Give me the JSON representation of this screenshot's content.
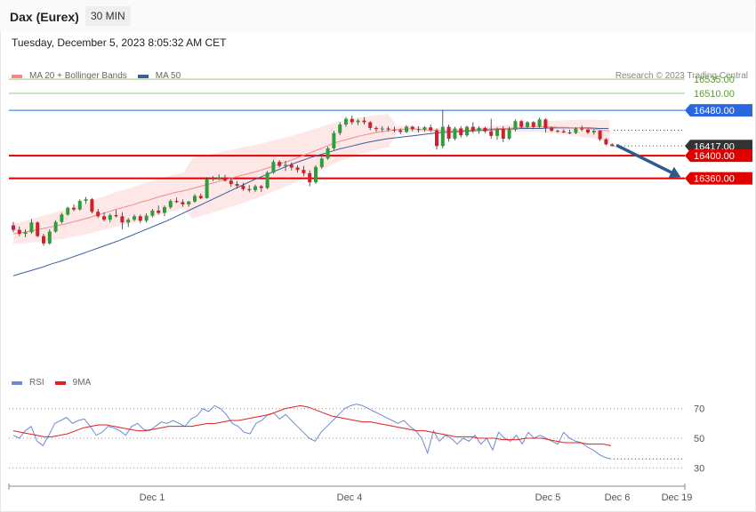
{
  "header": {
    "title": "Dax (Eurex)",
    "timeframe": "30 MIN"
  },
  "datetime": "Tuesday, December 5, 2023 8:05:32 AM CET",
  "legend": {
    "ma20": {
      "label": "MA 20 + Bollinger Bands",
      "color": "#f08a8a"
    },
    "ma50": {
      "label": "MA 50",
      "color": "#3a5f9e"
    }
  },
  "copyright": "Research © 2023 Trading Central",
  "rsi_legend": {
    "rsi": {
      "label": "RSI",
      "color": "#7089d6"
    },
    "ma9": {
      "label": "9MA",
      "color": "#e02020"
    }
  },
  "chart_data": [
    {
      "type": "candlestick",
      "ylim": [
        16000,
        16565
      ],
      "x_tick_labels": [
        "Dec 1",
        "Dec 4",
        "Dec 5",
        "Dec 6",
        "Dec 19"
      ],
      "grid": false,
      "legend_position": "top-left",
      "levels": [
        {
          "value": 16535,
          "label": "16535.00",
          "role": "target",
          "color": "#9acd6e",
          "label_style": "text"
        },
        {
          "value": 16510,
          "label": "16510.00",
          "role": "target",
          "color": "#9acd6e",
          "label_style": "text"
        },
        {
          "value": 16480,
          "label": "16480.00",
          "role": "pivot",
          "color": "#2a66e0",
          "label_style": "box"
        },
        {
          "value": 16417,
          "label": "16417.00",
          "role": "last price",
          "color": "#333333",
          "label_style": "box"
        },
        {
          "value": 16400,
          "label": "16400.00",
          "role": "support",
          "color": "#e00000",
          "label_style": "box"
        },
        {
          "value": 16360,
          "label": "16360.00",
          "role": "support",
          "color": "#e00000",
          "label_style": "box"
        }
      ],
      "forecast_arrow": {
        "from": 16417,
        "to": 16360,
        "color": "#2e5a8e"
      },
      "candles": [
        [
          16277,
          16283,
          16265,
          16269
        ],
        [
          16269,
          16275,
          16258,
          16262
        ],
        [
          16262,
          16270,
          16256,
          16265
        ],
        [
          16265,
          16288,
          16262,
          16282
        ],
        [
          16282,
          16284,
          16256,
          16258
        ],
        [
          16258,
          16262,
          16241,
          16245
        ],
        [
          16245,
          16270,
          16243,
          16266
        ],
        [
          16266,
          16286,
          16264,
          16283
        ],
        [
          16283,
          16299,
          16280,
          16296
        ],
        [
          16296,
          16310,
          16294,
          16308
        ],
        [
          16308,
          16314,
          16302,
          16305
        ],
        [
          16305,
          16323,
          16303,
          16320
        ],
        [
          16320,
          16327,
          16315,
          16323
        ],
        [
          16323,
          16325,
          16298,
          16301
        ],
        [
          16301,
          16306,
          16290,
          16293
        ],
        [
          16293,
          16300,
          16284,
          16287
        ],
        [
          16287,
          16298,
          16282,
          16295
        ],
        [
          16295,
          16304,
          16291,
          16293
        ],
        [
          16293,
          16300,
          16270,
          16282
        ],
        [
          16282,
          16290,
          16274,
          16287
        ],
        [
          16287,
          16296,
          16284,
          16293
        ],
        [
          16293,
          16296,
          16281,
          16285
        ],
        [
          16285,
          16298,
          16282,
          16294
        ],
        [
          16294,
          16306,
          16291,
          16303
        ],
        [
          16303,
          16312,
          16296,
          16299
        ],
        [
          16299,
          16312,
          16293,
          16309
        ],
        [
          16309,
          16323,
          16306,
          16320
        ],
        [
          16320,
          16326,
          16316,
          16318
        ],
        [
          16318,
          16323,
          16310,
          16314
        ],
        [
          16314,
          16320,
          16310,
          16319
        ],
        [
          16319,
          16332,
          16317,
          16329
        ],
        [
          16329,
          16333,
          16323,
          16325
        ],
        [
          16325,
          16362,
          16324,
          16358
        ],
        [
          16358,
          16364,
          16355,
          16360
        ],
        [
          16360,
          16367,
          16357,
          16361
        ],
        [
          16361,
          16366,
          16354,
          16356
        ],
        [
          16356,
          16361,
          16345,
          16350
        ],
        [
          16350,
          16355,
          16342,
          16347
        ],
        [
          16347,
          16352,
          16338,
          16341
        ],
        [
          16341,
          16348,
          16335,
          16339
        ],
        [
          16339,
          16349,
          16336,
          16346
        ],
        [
          16346,
          16348,
          16336,
          16343
        ],
        [
          16343,
          16373,
          16341,
          16370
        ],
        [
          16370,
          16393,
          16368,
          16389
        ],
        [
          16389,
          16392,
          16379,
          16382
        ],
        [
          16382,
          16391,
          16373,
          16384
        ],
        [
          16384,
          16388,
          16374,
          16379
        ],
        [
          16379,
          16383,
          16370,
          16375
        ],
        [
          16375,
          16382,
          16364,
          16369
        ],
        [
          16369,
          16374,
          16346,
          16353
        ],
        [
          16353,
          16383,
          16350,
          16380
        ],
        [
          16380,
          16398,
          16377,
          16395
        ],
        [
          16395,
          16416,
          16393,
          16413
        ],
        [
          16413,
          16444,
          16410,
          16440
        ],
        [
          16440,
          16459,
          16436,
          16455
        ],
        [
          16455,
          16468,
          16451,
          16465
        ],
        [
          16465,
          16471,
          16455,
          16459
        ],
        [
          16459,
          16465,
          16454,
          16462
        ],
        [
          16462,
          16468,
          16455,
          16459
        ],
        [
          16459,
          16461,
          16445,
          16449
        ],
        [
          16449,
          16452,
          16442,
          16447
        ],
        [
          16447,
          16452,
          16442,
          16448
        ],
        [
          16448,
          16452,
          16443,
          16446
        ],
        [
          16446,
          16451,
          16441,
          16445
        ],
        [
          16445,
          16448,
          16438,
          16442
        ],
        [
          16442,
          16454,
          16440,
          16451
        ],
        [
          16451,
          16453,
          16443,
          16447
        ],
        [
          16447,
          16452,
          16441,
          16446
        ],
        [
          16446,
          16452,
          16443,
          16450
        ],
        [
          16450,
          16455,
          16442,
          16445
        ],
        [
          16445,
          16448,
          16411,
          16417
        ],
        [
          16417,
          16480,
          16413,
          16451
        ],
        [
          16451,
          16455,
          16425,
          16430
        ],
        [
          16430,
          16451,
          16427,
          16448
        ],
        [
          16448,
          16452,
          16432,
          16436
        ],
        [
          16436,
          16453,
          16433,
          16451
        ],
        [
          16451,
          16459,
          16440,
          16444
        ],
        [
          16444,
          16452,
          16439,
          16449
        ],
        [
          16449,
          16451,
          16440,
          16443
        ],
        [
          16443,
          16465,
          16430,
          16435
        ],
        [
          16435,
          16450,
          16428,
          16447
        ],
        [
          16447,
          16452,
          16424,
          16430
        ],
        [
          16430,
          16451,
          16428,
          16446
        ],
        [
          16446,
          16464,
          16443,
          16461
        ],
        [
          16461,
          16463,
          16448,
          16451
        ],
        [
          16451,
          16461,
          16448,
          16459
        ],
        [
          16459,
          16461,
          16447,
          16451
        ],
        [
          16451,
          16467,
          16449,
          16464
        ],
        [
          16464,
          16466,
          16441,
          16449
        ],
        [
          16449,
          16451,
          16442,
          16444
        ],
        [
          16444,
          16446,
          16440,
          16443
        ],
        [
          16443,
          16447,
          16440,
          16441
        ],
        [
          16441,
          16446,
          16438,
          16440
        ],
        [
          16440,
          16450,
          16438,
          16448
        ],
        [
          16448,
          16453,
          16443,
          16446
        ],
        [
          16446,
          16448,
          16438,
          16441
        ],
        [
          16441,
          16446,
          16437,
          16444
        ],
        [
          16444,
          16445,
          16426,
          16429
        ],
        [
          16429,
          16431,
          16418,
          16420
        ],
        [
          16420,
          16422,
          16416,
          16417
        ]
      ],
      "ma20": [
        16262,
        16264,
        16267,
        16270,
        16273,
        16276,
        16279,
        16283,
        16287,
        16291,
        16296,
        16300,
        16305,
        16309,
        16313,
        16318,
        16322,
        16327,
        16331,
        16335,
        16338,
        16342,
        16346,
        16350,
        16354,
        16358,
        16362,
        16366,
        16370,
        16374,
        16379,
        16384,
        16389,
        16394,
        16400,
        16406,
        16412,
        16418,
        16424,
        16428,
        16432,
        16436,
        16439,
        16442,
        16444,
        16446,
        16447,
        16447,
        16446,
        16445,
        16444,
        16444,
        16444,
        16445,
        16446,
        16447,
        16447,
        16448,
        16448,
        16449,
        16450,
        16451,
        16451,
        16451,
        16450,
        16450,
        16449,
        16448,
        16447,
        16445,
        16444
      ],
      "ma50": [
        16188,
        16193,
        16198,
        16203,
        16209,
        16214,
        16220,
        16226,
        16232,
        16238,
        16244,
        16250,
        16257,
        16264,
        16271,
        16278,
        16285,
        16293,
        16301,
        16309,
        16317,
        16325,
        16333,
        16341,
        16349,
        16357,
        16364,
        16371,
        16378,
        16385,
        16391,
        16397,
        16402,
        16407,
        16412,
        16416,
        16420,
        16424,
        16427,
        16430,
        16432,
        16434,
        16436,
        16438,
        16440,
        16441,
        16442,
        16443,
        16444,
        16445,
        16446,
        16447,
        16447,
        16448,
        16448,
        16448,
        16449,
        16449,
        16449,
        16449,
        16449,
        16448,
        16448
      ]
    },
    {
      "type": "line",
      "ylim": [
        20,
        80
      ],
      "y_tick_labels": [
        "70",
        "50",
        "30"
      ],
      "reference_lines": [
        70,
        50,
        30
      ],
      "series": [
        {
          "name": "RSI",
          "color": "#7089d6",
          "values": [
            52,
            50,
            55,
            58,
            48,
            45,
            52,
            60,
            62,
            64,
            60,
            62,
            63,
            58,
            52,
            54,
            58,
            57,
            55,
            52,
            58,
            60,
            56,
            55,
            58,
            61,
            60,
            62,
            60,
            58,
            63,
            65,
            70,
            68,
            72,
            70,
            66,
            60,
            58,
            54,
            53,
            60,
            62,
            66,
            67,
            63,
            66,
            62,
            58,
            54,
            50,
            48,
            54,
            58,
            62,
            66,
            70,
            72,
            73,
            72,
            70,
            68,
            66,
            64,
            62,
            60,
            62,
            58,
            55,
            50,
            40,
            55,
            48,
            52,
            50,
            46,
            50,
            48,
            52,
            46,
            50,
            42,
            54,
            50,
            48,
            52,
            46,
            54,
            50,
            52,
            50,
            48,
            46,
            54,
            50,
            48,
            47,
            44,
            42,
            39,
            37,
            36
          ]
        },
        {
          "name": "9MA",
          "color": "#e02020",
          "values": [
            55,
            54,
            53,
            52,
            51,
            51,
            52,
            53,
            55,
            57,
            58,
            59,
            59,
            58,
            57,
            56,
            55,
            55,
            56,
            57,
            58,
            58,
            58,
            58,
            59,
            60,
            60,
            61,
            62,
            62,
            63,
            64,
            65,
            66,
            68,
            70,
            71,
            72,
            71,
            69,
            67,
            65,
            64,
            63,
            62,
            61,
            61,
            60,
            59,
            58,
            57,
            56,
            55,
            55,
            54,
            53,
            52,
            51,
            51,
            51,
            50,
            50,
            50,
            49,
            49,
            49,
            50,
            50,
            50,
            49,
            48,
            47,
            47,
            47,
            46,
            46,
            46,
            45
          ]
        }
      ]
    }
  ]
}
